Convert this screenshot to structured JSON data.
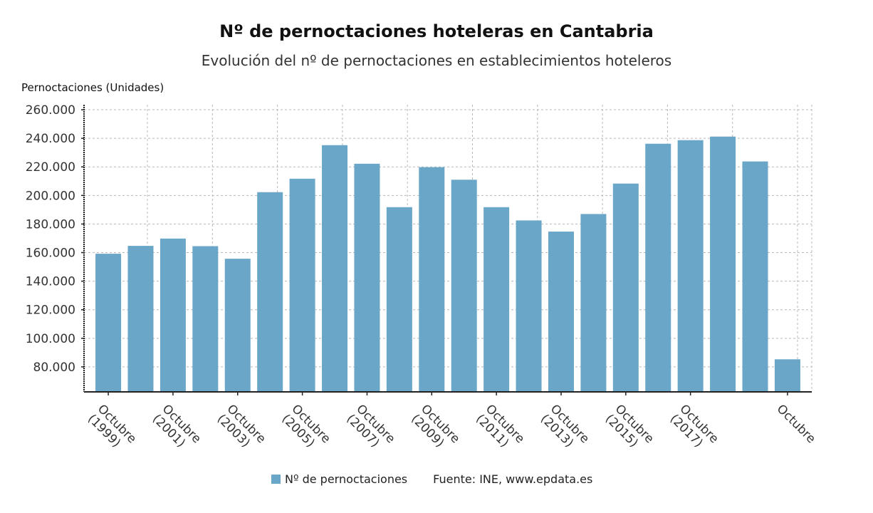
{
  "chart_data": {
    "type": "bar",
    "title": "Nº de pernoctaciones hoteleras en Cantabria",
    "subtitle": "Evolución del nº de pernoctaciones en establecimientos hoteleros",
    "ylabel": "Pernoctaciones (Unidades)",
    "xlabel": "",
    "ylim": [
      62500,
      263500
    ],
    "yticks": [
      80000,
      100000,
      120000,
      140000,
      160000,
      180000,
      200000,
      220000,
      240000,
      260000
    ],
    "ytick_labels": [
      "80.000",
      "100.000",
      "120.000",
      "140.000",
      "160.000",
      "180.000",
      "200.000",
      "220.000",
      "240.000",
      "260.000"
    ],
    "values": [
      159200,
      164700,
      169800,
      164500,
      155700,
      202300,
      211700,
      235200,
      222200,
      191800,
      219800,
      211000,
      191800,
      182500,
      174700,
      187000,
      208300,
      236200,
      238700,
      241200,
      223800,
      85300
    ],
    "tick_labels": [
      {
        "index": 0,
        "lines": [
          "Octubre",
          "(1999)"
        ]
      },
      {
        "index": 2,
        "lines": [
          "Octubre",
          "(2001)"
        ]
      },
      {
        "index": 4,
        "lines": [
          "Octubre",
          "(2003)"
        ]
      },
      {
        "index": 6,
        "lines": [
          "Octubre",
          "(2005)"
        ]
      },
      {
        "index": 8,
        "lines": [
          "Octubre",
          "(2007)"
        ]
      },
      {
        "index": 10,
        "lines": [
          "Octubre",
          "(2009)"
        ]
      },
      {
        "index": 12,
        "lines": [
          "Octubre",
          "(2011)"
        ]
      },
      {
        "index": 14,
        "lines": [
          "Octubre",
          "(2013)"
        ]
      },
      {
        "index": 16,
        "lines": [
          "Octubre",
          "(2015)"
        ]
      },
      {
        "index": 18,
        "lines": [
          "Octubre",
          "(2017)"
        ]
      },
      {
        "index": 21,
        "lines": [
          "Octubre"
        ]
      }
    ],
    "grid": true,
    "legend_position": "bottom",
    "series_name": "Nº de pernoctaciones",
    "bar_color": "#6aa6c8",
    "source": "Fuente: INE, www.epdata.es"
  }
}
